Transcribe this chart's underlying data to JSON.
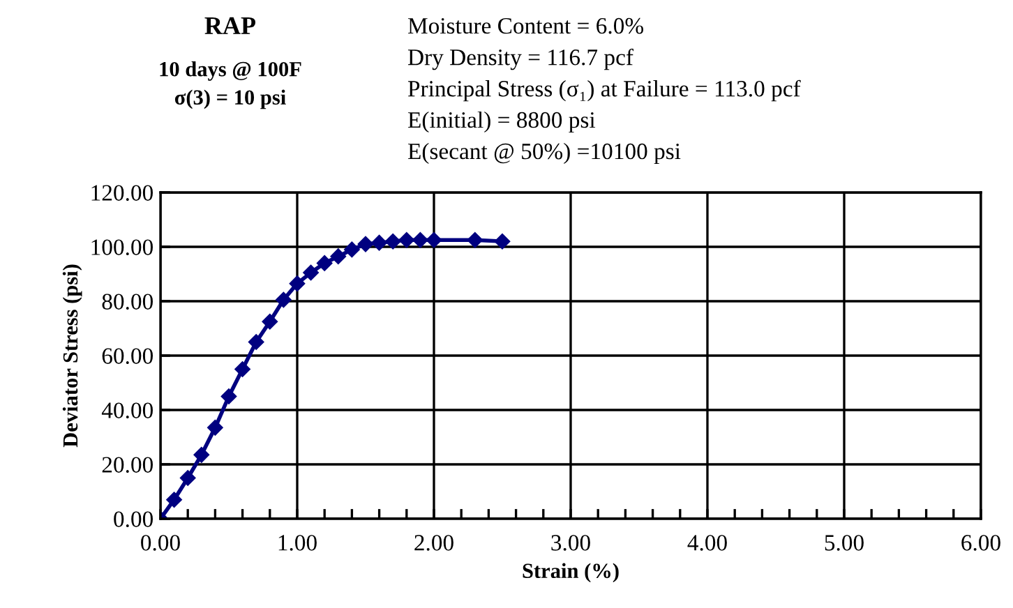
{
  "chart_data": {
    "type": "line",
    "title": "RAP",
    "subtitle": "10 days @ 100F\nσ(3) = 10 psi",
    "annotations": [
      "Moisture Content = 6.0%",
      "Dry Density = 116.7 pcf",
      "Principal Stress (σ₁) at Failure = 113.0 pcf",
      "E(initial) = 8800 psi",
      "E(secant @ 50%) =10100 psi"
    ],
    "xlabel": "Strain (%)",
    "ylabel": "Deviator Stress (psi)",
    "x": [
      0,
      0.1,
      0.2,
      0.3,
      0.4,
      0.5,
      0.6,
      0.7,
      0.8,
      0.9,
      1.0,
      1.1,
      1.2,
      1.3,
      1.4,
      1.5,
      1.6,
      1.7,
      1.8,
      1.9,
      2.0,
      2.3,
      2.5
    ],
    "series": [
      {
        "color": "#000080",
        "values": [
          0,
          7,
          15,
          23.5,
          33.5,
          45,
          55,
          65,
          72.5,
          80.5,
          86.5,
          90.5,
          94,
          96.5,
          99,
          101,
          101.5,
          102,
          102.5,
          102.5,
          102.5,
          102.5,
          102
        ]
      }
    ],
    "marker": "diamond",
    "line_style": "solid",
    "grid": true,
    "legend": false,
    "xlim": [
      0,
      6
    ],
    "ylim": [
      0,
      120
    ],
    "xticks": [
      {
        "value": 0,
        "label": "0.00"
      },
      {
        "value": 0.2,
        "label": null
      },
      {
        "value": 0.4,
        "label": null
      },
      {
        "value": 0.6,
        "label": null
      },
      {
        "value": 0.8,
        "label": null
      },
      {
        "value": 1,
        "label": "1.00"
      },
      {
        "value": 1.2,
        "label": null
      },
      {
        "value": 1.4,
        "label": null
      },
      {
        "value": 1.6,
        "label": null
      },
      {
        "value": 1.8,
        "label": null
      },
      {
        "value": 2,
        "label": "2.00"
      },
      {
        "value": 2.2,
        "label": null
      },
      {
        "value": 2.4,
        "label": null
      },
      {
        "value": 2.6,
        "label": null
      },
      {
        "value": 2.8,
        "label": null
      },
      {
        "value": 3,
        "label": "3.00"
      },
      {
        "value": 3.2,
        "label": null
      },
      {
        "value": 3.4,
        "label": null
      },
      {
        "value": 3.6,
        "label": null
      },
      {
        "value": 3.8,
        "label": null
      },
      {
        "value": 4,
        "label": "4.00"
      },
      {
        "value": 4.2,
        "label": null
      },
      {
        "value": 4.4,
        "label": null
      },
      {
        "value": 4.6,
        "label": null
      },
      {
        "value": 4.8,
        "label": null
      },
      {
        "value": 5,
        "label": "5.00"
      },
      {
        "value": 5.2,
        "label": null
      },
      {
        "value": 5.4,
        "label": null
      },
      {
        "value": 5.6,
        "label": null
      },
      {
        "value": 5.8,
        "label": null
      },
      {
        "value": 6,
        "label": "6.00"
      }
    ],
    "yticks": [
      {
        "value": 0,
        "label": "0.00"
      },
      {
        "value": 20,
        "label": "20.00"
      },
      {
        "value": 40,
        "label": "40.00"
      },
      {
        "value": 60,
        "label": "60.00"
      },
      {
        "value": 80,
        "label": "80.00"
      },
      {
        "value": 100,
        "label": "100.00"
      },
      {
        "value": 120,
        "label": "120.00"
      }
    ]
  }
}
